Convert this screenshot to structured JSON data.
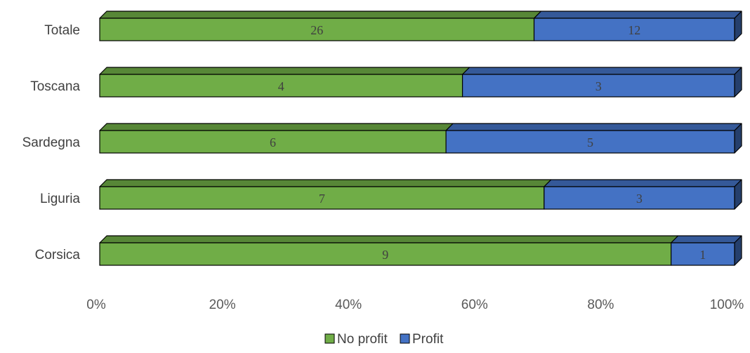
{
  "chart_data": {
    "type": "bar",
    "orientation": "horizontal",
    "stacking": "percent",
    "style": "3d",
    "categories": [
      "Totale",
      "Toscana",
      "Sardegna",
      "Liguria",
      "Corsica"
    ],
    "series": [
      {
        "name": "No profit",
        "values": [
          26,
          4,
          6,
          7,
          9
        ],
        "color": "#70ad47"
      },
      {
        "name": "Profit",
        "values": [
          12,
          3,
          5,
          3,
          1
        ],
        "color": "#4472c4"
      }
    ],
    "xlim": [
      0,
      100
    ],
    "x_ticks": [
      "0%",
      "20%",
      "40%",
      "60%",
      "80%",
      "100%"
    ],
    "grid": false,
    "legend_position": "bottom"
  },
  "legend": {
    "items": [
      {
        "label": "No profit",
        "color": "#70ad47"
      },
      {
        "label": "Profit",
        "color": "#4472c4"
      }
    ]
  }
}
